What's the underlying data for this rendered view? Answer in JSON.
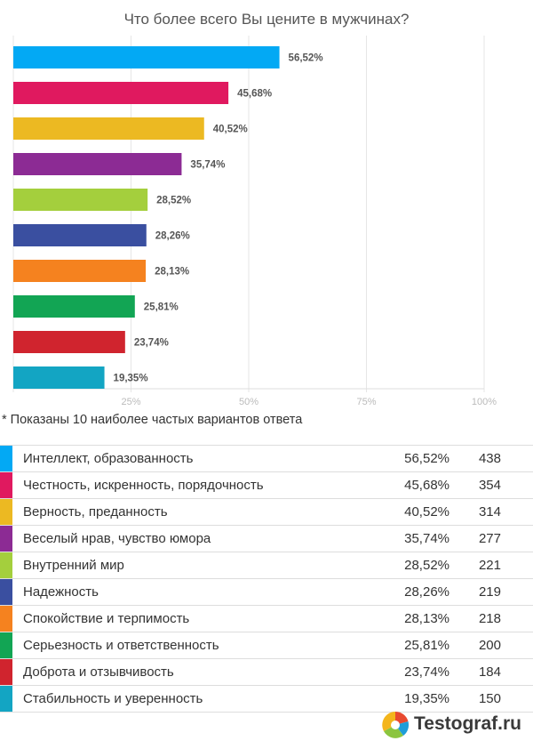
{
  "chart_data": {
    "type": "bar",
    "orientation": "horizontal",
    "title": "Что более всего Вы цените в мужчинах?",
    "categories": [
      "Интеллект, образованность",
      "Честность, искренность, порядочность",
      "Верность, преданность",
      "Веселый нрав, чувство юмора",
      "Внутренний мир",
      "Надежность",
      "Спокойствие и терпимость",
      "Серьезность и ответственность",
      "Доброта и отзывчивость",
      "Стабильность и уверенность"
    ],
    "values": [
      56.52,
      45.68,
      40.52,
      35.74,
      28.52,
      28.26,
      28.13,
      25.81,
      23.74,
      19.35
    ],
    "value_labels": [
      "56,52%",
      "45,68%",
      "40,52%",
      "35,74%",
      "28,52%",
      "28,26%",
      "28,13%",
      "25,81%",
      "23,74%",
      "19,35%"
    ],
    "counts": [
      "438",
      "354",
      "314",
      "277",
      "221",
      "219",
      "218",
      "200",
      "184",
      "150"
    ],
    "colors": [
      "#03a9f4",
      "#e0195f",
      "#ecb922",
      "#8c2b94",
      "#a4cf3d",
      "#3a4fa0",
      "#f5821f",
      "#12a554",
      "#d0242e",
      "#13a5c3"
    ],
    "xlim": [
      0,
      100
    ],
    "x_ticks": [
      "25%",
      "50%",
      "75%",
      "100%"
    ],
    "x_tick_values": [
      25,
      50,
      75,
      100
    ],
    "grid": true
  },
  "note": "* Показаны 10 наиболее частых вариантов ответа",
  "legend": [
    {
      "label": "Интеллект, образованность",
      "pct": "56,52%",
      "count": "438",
      "color": "#03a9f4"
    },
    {
      "label": "Честность, искренность, порядочность",
      "pct": "45,68%",
      "count": "354",
      "color": "#e0195f"
    },
    {
      "label": "Верность, преданность",
      "pct": "40,52%",
      "count": "314",
      "color": "#ecb922"
    },
    {
      "label": "Веселый нрав, чувство юмора",
      "pct": "35,74%",
      "count": "277",
      "color": "#8c2b94"
    },
    {
      "label": "Внутренний мир",
      "pct": "28,52%",
      "count": "221",
      "color": "#a4cf3d"
    },
    {
      "label": "Надежность",
      "pct": "28,26%",
      "count": "219",
      "color": "#3a4fa0"
    },
    {
      "label": "Спокойствие и терпимость",
      "pct": "28,13%",
      "count": "218",
      "color": "#f5821f"
    },
    {
      "label": "Серьезность и ответственность",
      "pct": "25,81%",
      "count": "200",
      "color": "#12a554"
    },
    {
      "label": "Доброта и отзывчивость",
      "pct": "23,74%",
      "count": "184",
      "color": "#d0242e"
    },
    {
      "label": "Стабильность и уверенность",
      "pct": "19,35%",
      "count": "150",
      "color": "#13a5c3"
    }
  ],
  "brand": {
    "text": "Testograf.ru",
    "logo_icon": "pie-chart-logo-icon"
  }
}
